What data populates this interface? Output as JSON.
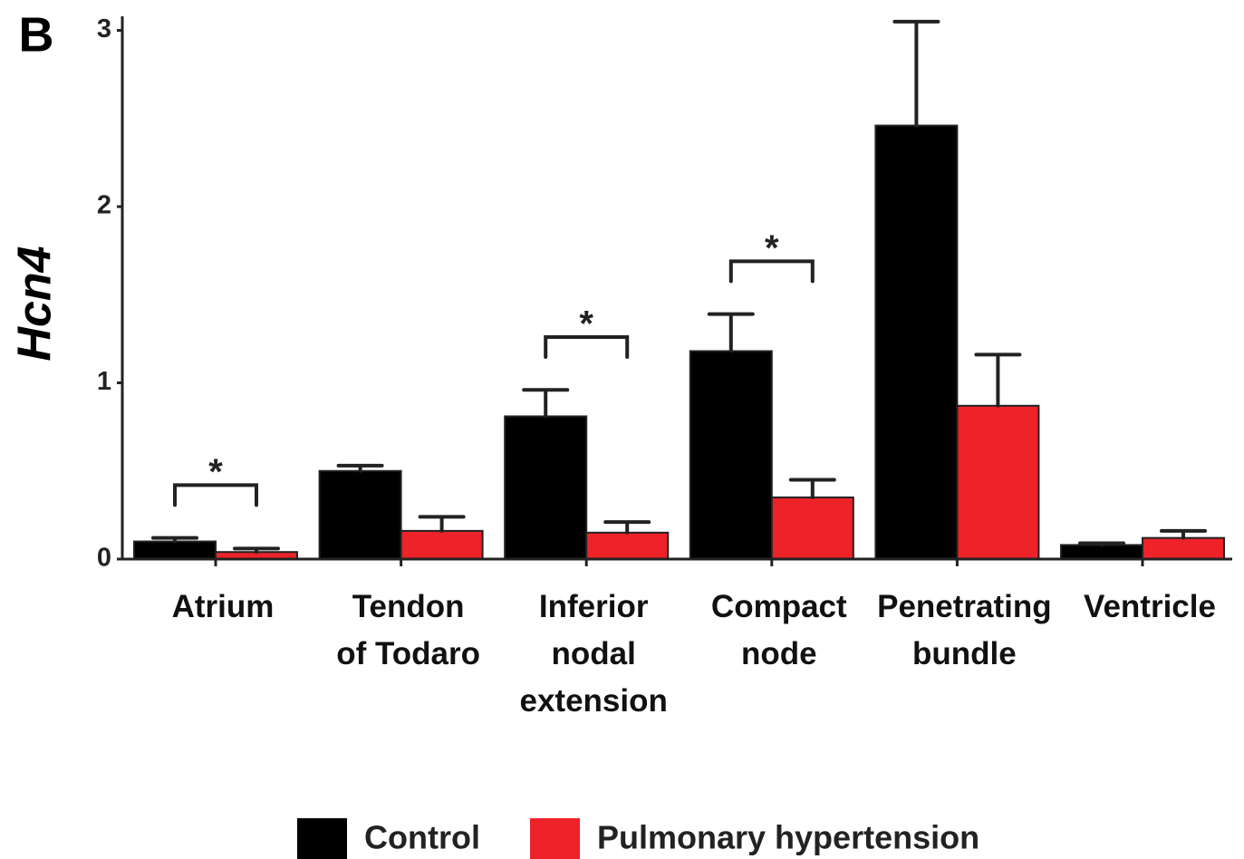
{
  "chart_data": {
    "type": "bar",
    "panel_label": "B",
    "ylabel": "Hcn4",
    "categories": [
      "Atrium",
      "Tendon\nof Todaro",
      "Inferior\nnodal\nextension",
      "Compact\nnode",
      "Penetrating\nbundle",
      "Ventricle"
    ],
    "series": [
      {
        "name": "Control",
        "color": "#000000",
        "values": [
          0.1,
          0.5,
          0.81,
          1.18,
          2.46,
          0.08
        ],
        "errors": [
          0.02,
          0.03,
          0.15,
          0.21,
          0.59,
          0.01
        ]
      },
      {
        "name": "Pulmonary hypertension",
        "color": "#ee2229",
        "values": [
          0.04,
          0.16,
          0.15,
          0.35,
          0.87,
          0.12
        ],
        "errors": [
          0.02,
          0.08,
          0.06,
          0.1,
          0.29,
          0.04
        ]
      }
    ],
    "ylim": [
      0,
      3.08
    ],
    "yticks": [
      0,
      1,
      2,
      3
    ],
    "annotations": [
      {
        "text": "*",
        "category": 0
      },
      {
        "text": "*",
        "category": 2
      },
      {
        "text": "*",
        "category": 3
      }
    ],
    "legend": "bottom"
  }
}
